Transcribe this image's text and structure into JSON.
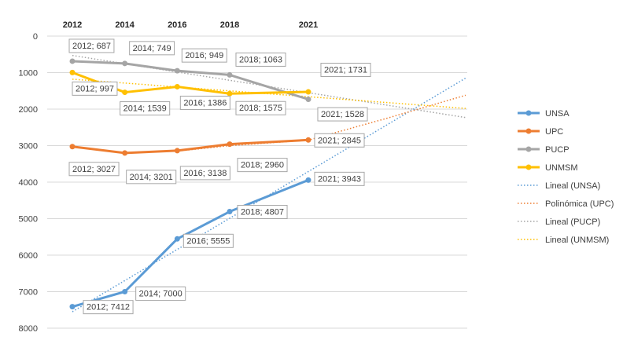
{
  "chart_data": {
    "type": "line",
    "title": "",
    "xlabel": "",
    "ylabel": "",
    "x": [
      2012,
      2014,
      2016,
      2018,
      2021
    ],
    "x_axis_position": "top",
    "y_reversed": true,
    "ylim": [
      0,
      8000
    ],
    "yticks": [
      0,
      1000,
      2000,
      3000,
      4000,
      5000,
      6000,
      7000,
      8000
    ],
    "grid": true,
    "legend_position": "right",
    "series": [
      {
        "name": "UNSA",
        "color": "#5b9bd5",
        "values": [
          7412,
          7000,
          5555,
          4807,
          3943
        ],
        "labels": [
          "2012; 7412",
          "2014; 7000",
          "2016; 5555",
          "2018; 4807",
          "2021; 3943"
        ]
      },
      {
        "name": "UPC",
        "color": "#ed7d31",
        "values": [
          3027,
          3201,
          3138,
          2960,
          2845
        ],
        "labels": [
          "2012; 3027",
          "2014; 3201",
          "2016; 3138",
          "2018; 2960",
          "2021; 2845"
        ]
      },
      {
        "name": "PUCP",
        "color": "#a5a5a5",
        "values": [
          687,
          749,
          949,
          1063,
          1731
        ],
        "labels": [
          "2012; 687",
          "2014; 749",
          "2016; 949",
          "2018; 1063",
          "2021; 1731"
        ]
      },
      {
        "name": "UNMSM",
        "color": "#ffc000",
        "values": [
          997,
          1539,
          1386,
          1575,
          1528
        ],
        "labels": [
          "2012; 997",
          "2014; 1539",
          "2016; 1386",
          "2018; 1575",
          "2021; 1528"
        ]
      }
    ],
    "trendlines": [
      {
        "name": "Lineal (UNSA)",
        "color": "#5b9bd5",
        "kind": "linear",
        "start": [
          2012,
          7550
        ],
        "end": [
          2027,
          1150
        ]
      },
      {
        "name": "Polinómica (UPC)",
        "color": "#ed7d31",
        "kind": "polynomial",
        "points": [
          [
            2012,
            3030
          ],
          [
            2014,
            3190
          ],
          [
            2016,
            3150
          ],
          [
            2018,
            3000
          ],
          [
            2021,
            2850
          ],
          [
            2024,
            2250
          ],
          [
            2027,
            1620
          ]
        ]
      },
      {
        "name": "Lineal (PUCP)",
        "color": "#a5a5a5",
        "kind": "linear",
        "start": [
          2012,
          530
        ],
        "end": [
          2027,
          2230
        ]
      },
      {
        "name": "Lineal (UNMSM)",
        "color": "#ffc000",
        "kind": "linear",
        "start": [
          2012,
          1180
        ],
        "end": [
          2027,
          1980
        ]
      }
    ]
  }
}
